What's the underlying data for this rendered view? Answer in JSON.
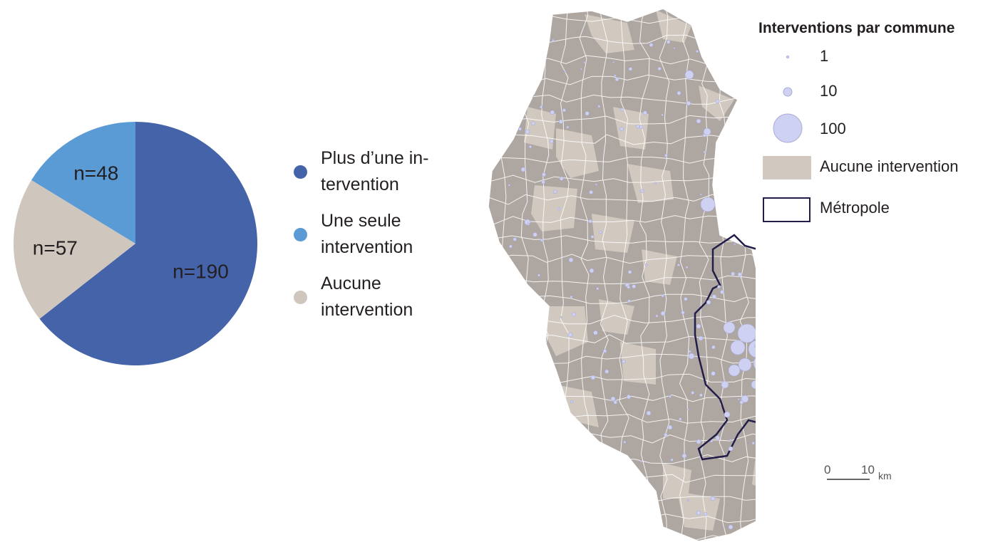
{
  "chart_data": [
    {
      "type": "pie",
      "slices": [
        {
          "label": "Plus d'une intervention",
          "value": 190,
          "data_label": "n=190",
          "color": "#4563a9"
        },
        {
          "label": "Une seule intervention",
          "value": 48,
          "data_label": "n=48",
          "color": "#5b9bd5"
        },
        {
          "label": "Aucune intervention",
          "value": 57,
          "data_label": "n=57",
          "color": "#cfc6bd"
        }
      ],
      "legend": {
        "placement": "right",
        "entries": [
          {
            "text": "Plus d’une in-\ntervention",
            "color": "#4563a9"
          },
          {
            "text": "Une seule\nintervention",
            "color": "#5b9bd5"
          },
          {
            "text": "Aucune\nintervention",
            "color": "#cfc6bd"
          }
        ]
      }
    },
    {
      "type": "map",
      "legend": {
        "title": "Interventions par commune",
        "circles": [
          {
            "label": "1",
            "value": 1
          },
          {
            "label": "10",
            "value": 10
          },
          {
            "label": "100",
            "value": 100
          }
        ],
        "none_label": "Aucune intervention",
        "metropole_label": "Métropole"
      },
      "scale": {
        "start": "0",
        "end": "10",
        "unit": "km"
      },
      "colors": {
        "commune": "#aea6a1",
        "no_intervention": "#d1c8bf",
        "circle_fill": "#cfd1f2",
        "circle_stroke": "#a9acd8",
        "metropole_outline": "#231d4a"
      }
    }
  ]
}
